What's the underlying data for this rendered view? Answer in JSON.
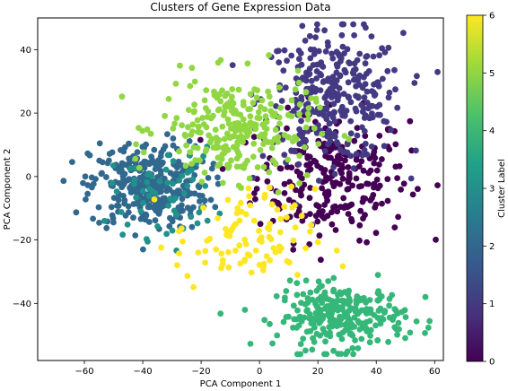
{
  "chart_data": {
    "type": "scatter",
    "title": "Clusters of Gene Expression Data",
    "xlabel": "PCA Component 1",
    "ylabel": "PCA Component 2",
    "xlim": [
      -76,
      63
    ],
    "ylim": [
      -58,
      50
    ],
    "xticks": [
      -60,
      -40,
      -20,
      0,
      20,
      40,
      60
    ],
    "yticks": [
      -40,
      -20,
      0,
      20,
      40
    ],
    "colorbar": {
      "label": "Cluster Label",
      "range": [
        0,
        6
      ],
      "ticks": [
        0,
        1,
        2,
        3,
        4,
        5,
        6
      ],
      "colormap": "viridis"
    },
    "clusters": [
      {
        "label": 0,
        "color": "#440154",
        "center": [
          25,
          0
        ],
        "spread": [
          13,
          10
        ],
        "count": 260
      },
      {
        "label": 1,
        "color": "#443983",
        "center": [
          25,
          25
        ],
        "spread": [
          12,
          10
        ],
        "count": 320
      },
      {
        "label": 2,
        "color": "#31688e",
        "center": [
          -38,
          -3
        ],
        "spread": [
          10,
          7
        ],
        "count": 330
      },
      {
        "label": 3,
        "color": "#21918c",
        "center": [
          -33,
          -5
        ],
        "spread": [
          9,
          7
        ],
        "count": 60
      },
      {
        "label": 4,
        "color": "#35b779",
        "center": [
          28,
          -44
        ],
        "spread": [
          11,
          5
        ],
        "count": 280
      },
      {
        "label": 5,
        "color": "#90d743",
        "center": [
          -8,
          15
        ],
        "spread": [
          13,
          8
        ],
        "count": 260
      },
      {
        "label": 6,
        "color": "#fde725",
        "center": [
          -5,
          -20
        ],
        "spread": [
          12,
          8
        ],
        "count": 100
      }
    ]
  }
}
